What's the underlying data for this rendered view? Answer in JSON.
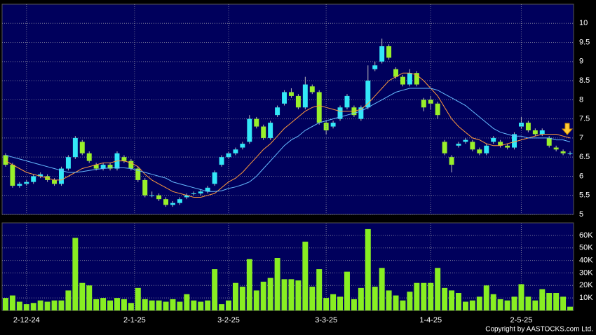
{
  "chart_data": [
    {
      "type": "candlestick",
      "up_color": "#33e8f8",
      "down_color": "#99f02a",
      "xlim": [
        -0.5,
        81.5
      ],
      "ylim": [
        5,
        10.5
      ],
      "yticks": [
        5,
        5.5,
        6,
        6.5,
        7,
        7.5,
        8,
        8.5,
        9,
        9.5,
        10
      ],
      "grid": true,
      "open": [
        6.55,
        6.3,
        5.75,
        5.8,
        5.85,
        6.0,
        6.0,
        5.9,
        5.8,
        6.2,
        6.5,
        6.9,
        6.6,
        6.3,
        6.2,
        6.3,
        6.2,
        6.5,
        6.4,
        6.2,
        5.9,
        5.5,
        5.5,
        5.4,
        5.25,
        5.3,
        5.45,
        5.55,
        5.55,
        5.6,
        5.8,
        6.3,
        6.5,
        6.6,
        6.75,
        6.9,
        7.5,
        7.3,
        7.0,
        7.6,
        7.9,
        8.2,
        8.1,
        7.8,
        8.35,
        8.2,
        7.4,
        7.3,
        7.5,
        7.8,
        7.8,
        7.5,
        7.8,
        8.8,
        9.0,
        9.4,
        8.8,
        8.6,
        8.4,
        8.7,
        8.0,
        8.0,
        7.9,
        6.9,
        6.5,
        6.8,
        6.9,
        6.9,
        6.7,
        6.6,
        6.9,
        6.9,
        6.8,
        6.75,
        7.3,
        7.4,
        7.2,
        7.1,
        7.0,
        6.75,
        6.65,
        6.6
      ],
      "high": [
        6.6,
        6.35,
        5.85,
        5.9,
        6.05,
        6.1,
        6.05,
        5.95,
        6.25,
        6.55,
        7.05,
        6.95,
        6.65,
        6.35,
        6.35,
        6.35,
        6.65,
        6.55,
        6.45,
        6.25,
        5.95,
        5.6,
        5.55,
        5.45,
        5.35,
        5.45,
        5.55,
        5.6,
        5.65,
        5.75,
        6.15,
        6.55,
        6.65,
        6.75,
        6.9,
        7.6,
        7.55,
        7.35,
        7.45,
        7.85,
        8.25,
        8.3,
        8.15,
        8.6,
        8.4,
        8.25,
        7.45,
        7.45,
        7.85,
        8.15,
        7.85,
        7.85,
        8.9,
        9.0,
        9.6,
        9.45,
        8.85,
        8.65,
        8.8,
        8.75,
        8.05,
        8.1,
        7.95,
        6.95,
        6.55,
        6.9,
        7.0,
        6.95,
        6.75,
        6.85,
        7.05,
        6.95,
        6.85,
        7.15,
        7.55,
        7.45,
        7.25,
        7.25,
        7.05,
        6.8,
        6.7,
        6.65
      ],
      "low": [
        6.25,
        5.7,
        5.7,
        5.75,
        5.8,
        5.95,
        5.85,
        5.75,
        5.75,
        6.15,
        6.45,
        6.55,
        6.35,
        6.15,
        6.15,
        6.15,
        6.15,
        6.35,
        6.15,
        5.85,
        5.45,
        5.45,
        5.35,
        5.2,
        5.2,
        5.25,
        5.4,
        5.5,
        5.5,
        5.55,
        5.75,
        6.25,
        6.45,
        6.55,
        6.7,
        6.85,
        7.25,
        6.95,
        6.95,
        7.55,
        7.85,
        8.05,
        7.75,
        7.75,
        8.15,
        7.35,
        7.1,
        7.25,
        7.45,
        7.75,
        7.55,
        7.45,
        7.75,
        8.75,
        8.95,
        9.05,
        8.55,
        8.35,
        8.35,
        8.35,
        7.7,
        7.75,
        7.5,
        6.55,
        6.1,
        6.75,
        6.85,
        6.65,
        6.55,
        6.55,
        6.85,
        6.75,
        6.7,
        6.7,
        7.25,
        7.15,
        7.05,
        7.05,
        6.75,
        6.65,
        6.55,
        6.55
      ],
      "close": [
        6.3,
        5.75,
        5.8,
        5.85,
        6.0,
        6.05,
        5.9,
        5.8,
        6.2,
        6.5,
        7.0,
        6.6,
        6.4,
        6.2,
        6.3,
        6.2,
        6.6,
        6.4,
        6.2,
        5.9,
        5.5,
        5.5,
        5.4,
        5.25,
        5.3,
        5.4,
        5.5,
        5.55,
        5.6,
        5.7,
        6.1,
        6.5,
        6.6,
        6.7,
        6.85,
        7.5,
        7.3,
        7.0,
        7.4,
        7.8,
        8.2,
        8.1,
        7.8,
        8.4,
        8.2,
        7.4,
        7.2,
        7.4,
        7.8,
        8.1,
        7.6,
        7.8,
        8.5,
        8.9,
        9.4,
        9.1,
        8.6,
        8.4,
        8.7,
        8.4,
        7.8,
        7.9,
        7.6,
        6.6,
        6.3,
        6.85,
        6.95,
        6.7,
        6.6,
        6.8,
        7.0,
        6.8,
        6.75,
        7.1,
        7.4,
        7.2,
        7.1,
        7.2,
        6.8,
        6.7,
        6.6,
        6.6
      ],
      "series": [
        {
          "color": "#ff9a3c",
          "values": [
            6.4,
            6.3,
            6.2,
            6.1,
            6.05,
            6.0,
            5.95,
            5.9,
            5.9,
            6.0,
            6.1,
            6.2,
            6.25,
            6.3,
            6.35,
            6.35,
            6.4,
            6.4,
            6.35,
            6.25,
            6.05,
            5.9,
            5.8,
            5.7,
            5.6,
            5.55,
            5.5,
            5.45,
            5.45,
            5.5,
            5.55,
            5.7,
            5.85,
            5.95,
            6.1,
            6.3,
            6.5,
            6.7,
            6.85,
            7.05,
            7.25,
            7.4,
            7.55,
            7.7,
            7.8,
            7.85,
            7.8,
            7.75,
            7.7,
            7.7,
            7.7,
            7.75,
            7.9,
            8.1,
            8.3,
            8.5,
            8.6,
            8.7,
            8.7,
            8.65,
            8.5,
            8.3,
            8.1,
            7.8,
            7.5,
            7.3,
            7.15,
            7.0,
            6.95,
            6.85,
            6.8,
            6.8,
            6.85,
            6.9,
            6.95,
            7.0,
            7.05,
            7.1,
            7.1,
            7.1,
            7.05,
            7.0
          ]
        },
        {
          "color": "#66bbff",
          "values": [
            6.55,
            6.5,
            6.45,
            6.4,
            6.35,
            6.3,
            6.25,
            6.2,
            6.15,
            6.1,
            6.1,
            6.12,
            6.15,
            6.18,
            6.2,
            6.22,
            6.22,
            6.22,
            6.2,
            6.15,
            6.1,
            6.05,
            6.0,
            5.95,
            5.85,
            5.8,
            5.75,
            5.7,
            5.65,
            5.6,
            5.6,
            5.62,
            5.68,
            5.72,
            5.78,
            5.85,
            6.0,
            6.2,
            6.4,
            6.6,
            6.8,
            6.95,
            7.05,
            7.2,
            7.3,
            7.4,
            7.45,
            7.5,
            7.55,
            7.6,
            7.65,
            7.7,
            7.8,
            7.9,
            8.0,
            8.1,
            8.2,
            8.25,
            8.3,
            8.3,
            8.3,
            8.3,
            8.25,
            8.15,
            8.05,
            7.95,
            7.85,
            7.7,
            7.55,
            7.4,
            7.25,
            7.15,
            7.1,
            7.05,
            7.05,
            7.0,
            7.0,
            7.0,
            7.0,
            6.95,
            6.95,
            6.9
          ]
        }
      ]
    },
    {
      "type": "bar",
      "color": "#88ee22",
      "xlim": [
        -0.5,
        81.5
      ],
      "ylim": [
        0,
        70000
      ],
      "yticks": [
        {
          "value": 10000,
          "label": "10K"
        },
        {
          "value": 20000,
          "label": "20K"
        },
        {
          "value": 30000,
          "label": "30K"
        },
        {
          "value": 40000,
          "label": "40K"
        },
        {
          "value": 50000,
          "label": "50K"
        },
        {
          "value": 60000,
          "label": "60K"
        }
      ],
      "xticks": [
        {
          "value": 3,
          "label": "2-12-24"
        },
        {
          "value": 18.5,
          "label": "2-1-25"
        },
        {
          "value": 32,
          "label": "3-2-25"
        },
        {
          "value": 46,
          "label": "3-3-25"
        },
        {
          "value": 61,
          "label": "1-4-25"
        },
        {
          "value": 74,
          "label": "2-5-25"
        }
      ],
      "grid": true,
      "values": [
        10000,
        12000,
        7000,
        5000,
        6000,
        8000,
        7000,
        8000,
        8000,
        16000,
        58000,
        22000,
        20000,
        9000,
        10000,
        8000,
        10000,
        9000,
        6000,
        18000,
        9000,
        8000,
        8000,
        7000,
        9000,
        7000,
        13000,
        8000,
        7000,
        8000,
        33000,
        5000,
        8000,
        22000,
        19000,
        41000,
        16000,
        23000,
        26000,
        42000,
        25000,
        25000,
        24000,
        55000,
        19000,
        33000,
        10000,
        13000,
        11000,
        31000,
        9000,
        18000,
        65000,
        19000,
        34000,
        16000,
        12000,
        8000,
        15000,
        22000,
        22000,
        22000,
        34000,
        18000,
        16000,
        14000,
        7000,
        8000,
        11000,
        20000,
        13000,
        9000,
        8000,
        11000,
        21000,
        11000,
        8000,
        17000,
        14000,
        14000,
        11000,
        3000
      ]
    }
  ],
  "copyright": "Copyright by AASTOCKS.com Ltd."
}
